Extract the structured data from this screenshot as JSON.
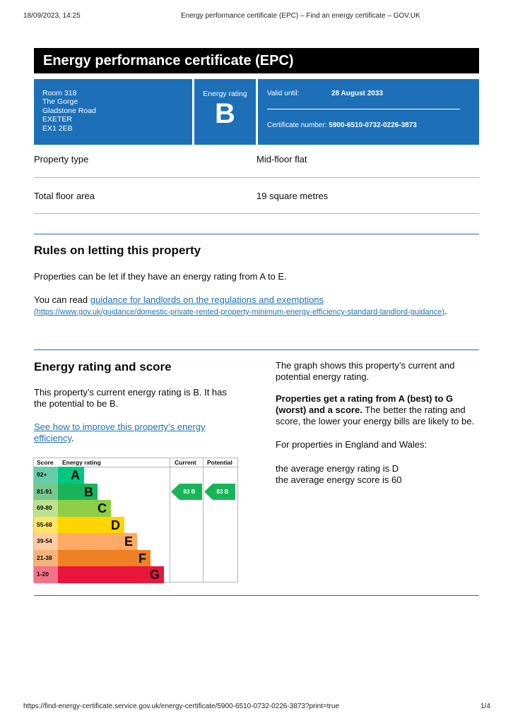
{
  "browser": {
    "datetime": "18/09/2023, 14:25",
    "page_title": "Energy performance certificate (EPC) – Find an energy certificate – GOV.UK",
    "url": "https://find-energy-certificate.service.gov.uk/energy-certificate/5900-6510-0732-0226-3873?print=true",
    "page_number": "1/4"
  },
  "title": "Energy performance certificate (EPC)",
  "summary": {
    "address": [
      "Room 318",
      "The Gorge",
      "Gladstone Road",
      "EXETER",
      "EX1 2EB"
    ],
    "rating_label": "Energy rating",
    "rating": "B",
    "valid_label": "Valid until:",
    "valid_date": "28 August 2033",
    "cert_label": "Certificate number:",
    "cert_number": "5900-6510-0732-0226-3873"
  },
  "details": [
    {
      "label": "Property type",
      "value": "Mid-floor flat"
    },
    {
      "label": "Total floor area",
      "value": "19 square metres"
    }
  ],
  "letting": {
    "heading": "Rules on letting this property",
    "p1": "Properties can be let if they have an energy rating from A to E.",
    "p2_prefix": "You can read ",
    "link": "guidance for landlords on the regulations and exemptions",
    "link_url": "(https://www.gov.uk/guidance/domestic-private-rented-property-minimum-energy-efficiency-standard-landlord-guidance)",
    "p2_suffix": "."
  },
  "score": {
    "heading": "Energy rating and score",
    "p1": "This property’s current energy rating is B. It has the potential to be B.",
    "link": "See how to improve this property’s energy efficiency",
    "link_suffix": ".",
    "right_p1": "The graph shows this property’s current and potential energy rating.",
    "right_bold": "Properties get a rating from A (best) to G (worst) and a score.",
    "right_p2": " The better the rating and score, the lower your energy bills are likely to be.",
    "right_p3": "For properties in England and Wales:",
    "avg1": "the average energy rating is D",
    "avg2": "the average energy score is 60"
  },
  "chart_data": {
    "type": "table",
    "headers": [
      "Score",
      "Energy rating",
      "Current",
      "Potential"
    ],
    "bands": [
      {
        "score": "92+",
        "letter": "A",
        "color": "#00c781",
        "light": "#66cdaa"
      },
      {
        "score": "81-91",
        "letter": "B",
        "color": "#19b459",
        "light": "#75c88e"
      },
      {
        "score": "69-80",
        "letter": "C",
        "color": "#8dce46",
        "light": "#bbe28f"
      },
      {
        "score": "55-68",
        "letter": "D",
        "color": "#ffd500",
        "light": "#ffe566"
      },
      {
        "score": "39-54",
        "letter": "E",
        "color": "#fcaa65",
        "light": "#fdcca3"
      },
      {
        "score": "21-38",
        "letter": "F",
        "color": "#ef8023",
        "light": "#f5b37b"
      },
      {
        "score": "1-20",
        "letter": "G",
        "color": "#e9153b",
        "light": "#f27389"
      }
    ],
    "current": {
      "score": 83,
      "band": "B",
      "label": "83  B"
    },
    "potential": {
      "score": 83,
      "band": "B",
      "label": "83  B"
    }
  }
}
